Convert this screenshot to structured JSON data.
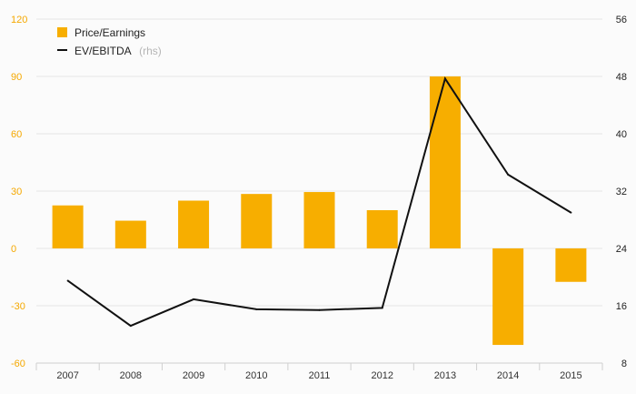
{
  "chart_data": {
    "type": "bar+line",
    "categories": [
      "2007",
      "2008",
      "2009",
      "2010",
      "2011",
      "2012",
      "2013",
      "2014",
      "2015"
    ],
    "series": [
      {
        "name": "Price/Earnings",
        "type": "bar",
        "axis": "left",
        "color": "#f7ae00",
        "values": [
          22.5,
          14.5,
          25,
          28.5,
          29.5,
          20,
          90,
          -50.5,
          -17.5
        ]
      },
      {
        "name": "EV/EBITDA",
        "type": "line",
        "axis": "right",
        "color": "#111111",
        "values": [
          19.5,
          13.2,
          16.9,
          15.5,
          15.4,
          15.7,
          47.7,
          34.3,
          29
        ]
      }
    ],
    "legend": {
      "bar_label": "Price/Earnings",
      "line_label": "EV/EBITDA",
      "line_suffix": "(rhs)",
      "placement": "top-left"
    },
    "left_axis": {
      "ylim": [
        -60,
        120
      ],
      "ticks": [
        "-60",
        "-30",
        "0",
        "30",
        "60",
        "90",
        "120"
      ],
      "color": "#f5a800"
    },
    "right_axis": {
      "ylim": [
        8,
        56
      ],
      "ticks": [
        "8",
        "16",
        "24",
        "32",
        "40",
        "48",
        "56"
      ],
      "color": "#222222"
    },
    "grid": true,
    "title": "",
    "xlabel": "",
    "ylabel": ""
  }
}
